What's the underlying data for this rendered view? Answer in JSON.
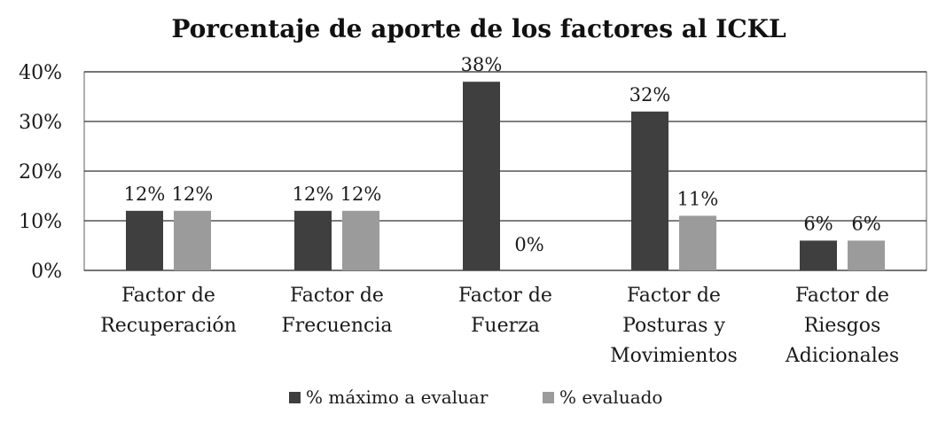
{
  "chart_data": {
    "type": "bar",
    "title": "Porcentaje de aporte de los factores al ICKL",
    "categories": [
      [
        "Factor de",
        "Recuperación"
      ],
      [
        "Factor de",
        "Frecuencia"
      ],
      [
        "Factor de",
        "Fuerza"
      ],
      [
        "Factor de",
        "Posturas y",
        "Movimientos"
      ],
      [
        "Factor de",
        "Riesgos",
        "Adicionales"
      ]
    ],
    "series": [
      {
        "name": "% máximo a evaluar",
        "values": [
          12,
          12,
          38,
          32,
          6
        ],
        "labels": [
          "12%",
          "12%",
          "38%",
          "32%",
          "6%"
        ],
        "color": "#3f3f3f"
      },
      {
        "name": "% evaluado",
        "values": [
          12,
          12,
          0,
          11,
          6
        ],
        "labels": [
          "12%",
          "12%",
          "0%",
          "11%",
          "6%"
        ],
        "color": "#9b9b9b"
      }
    ],
    "ylim": [
      0,
      40
    ],
    "yticks": [
      "0%",
      "10%",
      "20%",
      "30%",
      "40%"
    ],
    "xlabel": "",
    "ylabel": "",
    "grid": true,
    "legend": "bottom"
  }
}
